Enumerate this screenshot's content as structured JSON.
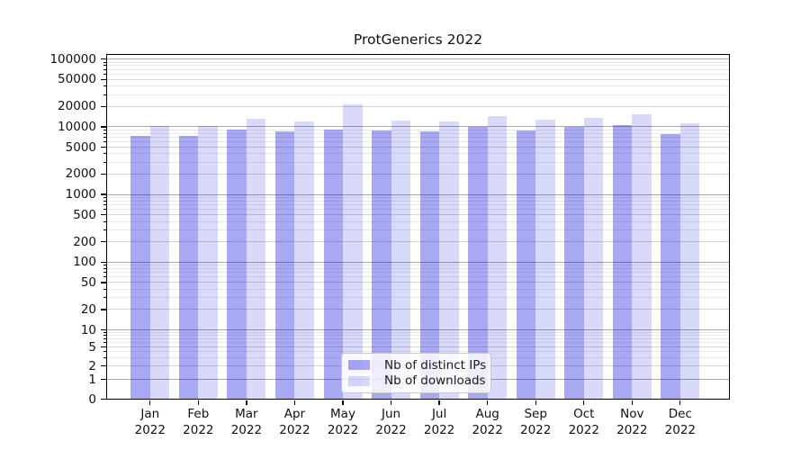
{
  "chart_data": {
    "type": "bar",
    "title": "ProtGenerics 2022",
    "categories": [
      "Jan",
      "Feb",
      "Mar",
      "Apr",
      "May",
      "Jun",
      "Jul",
      "Aug",
      "Sep",
      "Oct",
      "Nov",
      "Dec"
    ],
    "x_tick_second_line": "2022",
    "series": [
      {
        "name": "Nb of distinct IPs",
        "color": "rgba(0,0,220,0.34)",
        "values": [
          7400,
          7400,
          9200,
          8600,
          9100,
          8700,
          8600,
          10100,
          8900,
          9900,
          10600,
          7700
        ]
      },
      {
        "name": "Nb of downloads",
        "color": "rgba(0,0,220,0.15)",
        "values": [
          10300,
          10400,
          13100,
          11900,
          21400,
          12500,
          12100,
          14400,
          12800,
          13700,
          15300,
          11400
        ]
      }
    ],
    "y_scale": "symlog",
    "y_ticks": [
      100000,
      50000,
      20000,
      10000,
      5000,
      2000,
      1000,
      500,
      200,
      100,
      50,
      20,
      10,
      5,
      2,
      1,
      0
    ],
    "ylim": [
      0,
      120000
    ],
    "grid": "both",
    "legend_position": "lower center"
  },
  "colors": {
    "grid_major": "#a9a9a9",
    "grid_minor_labeled": "#d4d4d4",
    "grid_minor_faint": "#e9e9e9",
    "axis": "#000000",
    "background": "#ffffff"
  }
}
